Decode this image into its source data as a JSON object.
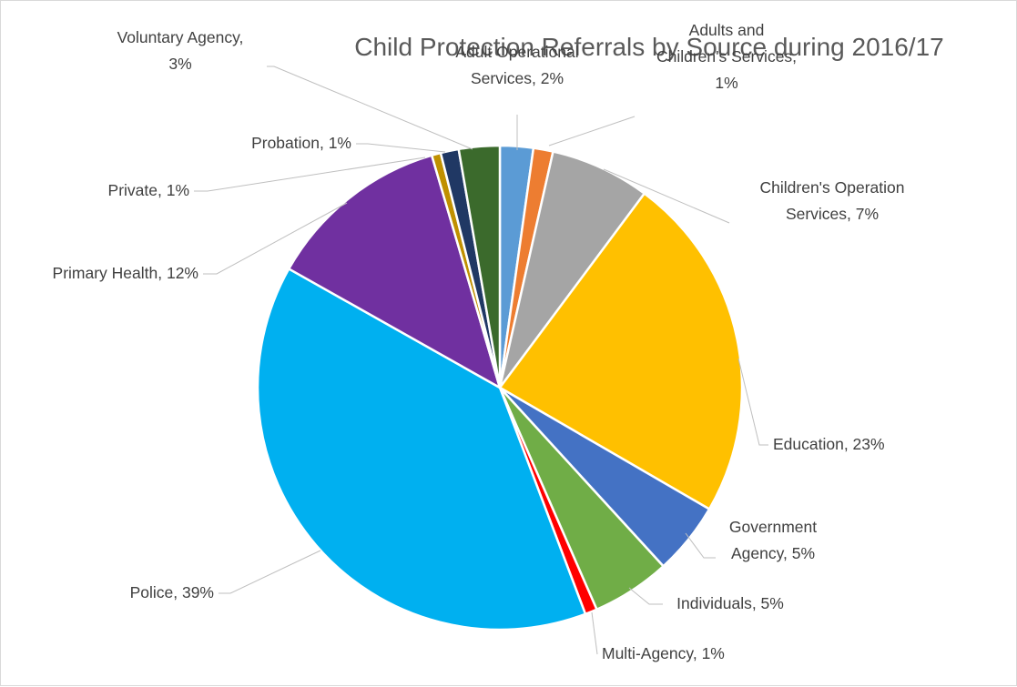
{
  "chart_data": {
    "type": "pie",
    "title": "Child Protection Referrals by Source during 2016/17",
    "slices": [
      {
        "name": "Adult Operational Services",
        "value": 2.2,
        "color": "#5b9bd5",
        "label_lines": [
          "Adult Operational",
          "Services, 2%"
        ]
      },
      {
        "name": "Adults and Children's Services",
        "value": 1.3,
        "color": "#ed7d31",
        "label_lines": [
          "Adults and",
          "Children's Services,",
          "1%"
        ]
      },
      {
        "name": "Children's Operation Services",
        "value": 6.6,
        "color": "#a5a5a5",
        "label_lines": [
          "Children's Operation",
          "Services, 7%"
        ]
      },
      {
        "name": "Education",
        "value": 23.0,
        "color": "#ffc000",
        "label_lines": [
          "Education, 23%"
        ]
      },
      {
        "name": "Government Agency",
        "value": 4.8,
        "color": "#4472c4",
        "label_lines": [
          "Government",
          "Agency, 5%"
        ]
      },
      {
        "name": "Individuals",
        "value": 5.2,
        "color": "#70ad47",
        "label_lines": [
          "Individuals, 5%"
        ]
      },
      {
        "name": "Multi-Agency",
        "value": 0.8,
        "color": "#ff0000",
        "label_lines": [
          "Multi-Agency, 1%"
        ]
      },
      {
        "name": "Police",
        "value": 38.6,
        "color": "#00b0f0",
        "label_lines": [
          "Police, 39%"
        ]
      },
      {
        "name": "Primary Health",
        "value": 12.2,
        "color": "#7030a0",
        "label_lines": [
          "Primary Health, 12%"
        ]
      },
      {
        "name": "Private",
        "value": 0.6,
        "color": "#c09000",
        "label_lines": [
          "Private, 1%"
        ]
      },
      {
        "name": "Probation",
        "value": 1.2,
        "color": "#203864",
        "label_lines": [
          "Probation, 1%"
        ]
      },
      {
        "name": "Voluntary Agency",
        "value": 2.7,
        "color": "#3b6a2c",
        "label_lines": [
          "Voluntary Agency,",
          "3%"
        ]
      }
    ],
    "legend": "none",
    "label_color": "#404040",
    "leader_line_color": "#bfbfbf",
    "slice_border_color": "#ffffff"
  }
}
